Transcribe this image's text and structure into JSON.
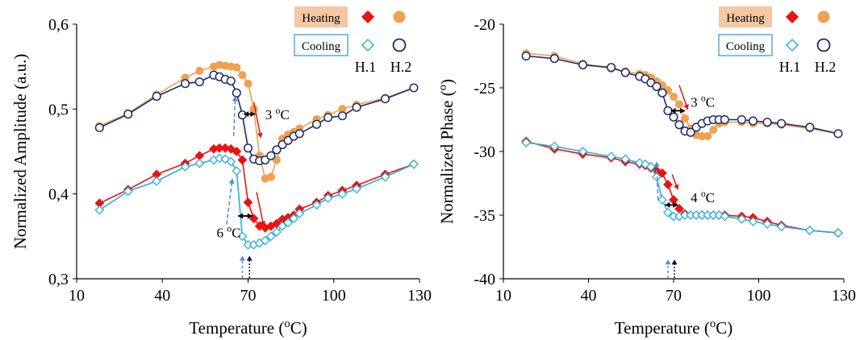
{
  "colors": {
    "heating_h1": "#e8140f",
    "heating_h2": "#f0a050",
    "cooling_h1": "#2aaee0",
    "cooling_h2": "#1c2a6b",
    "heating_legend_bg": "#f5c7a3",
    "cooling_legend_border": "#3a9fd8",
    "arrow_red": "#e8140f",
    "arrow_blue": "#4a90d0",
    "arrow_dark": "#101040"
  },
  "chart_data": [
    {
      "type": "line",
      "xlabel": "Temperature (oC)",
      "ylabel": "Normalized Amplitude (a.u.)",
      "xlim": [
        10,
        130
      ],
      "ylim": [
        0.3,
        0.6
      ],
      "xticks": [
        "10",
        "40",
        "70",
        "100",
        "130"
      ],
      "yticks": [
        "0,3",
        "0,4",
        "0,5",
        "0,6"
      ],
      "legend": {
        "heating_label": "Heating",
        "cooling_label": "Cooling",
        "col1": "H.1",
        "col2": "H.2"
      },
      "annotations": [
        "3 oC",
        "6 oC"
      ],
      "series": [
        {
          "name": "Heating H.1",
          "marker": "diamond-filled",
          "color_key": "heating_h1",
          "x": [
            18,
            28,
            38,
            48,
            53,
            58,
            60,
            62,
            64,
            66,
            68,
            70,
            72,
            74,
            76,
            78,
            80,
            82,
            84,
            86,
            88,
            94,
            98,
            103,
            108,
            118,
            128
          ],
          "y": [
            0.389,
            0.405,
            0.423,
            0.436,
            0.445,
            0.453,
            0.454,
            0.454,
            0.453,
            0.45,
            0.44,
            0.39,
            0.371,
            0.362,
            0.36,
            0.362,
            0.365,
            0.37,
            0.372,
            0.375,
            0.382,
            0.39,
            0.398,
            0.404,
            0.41,
            0.423,
            0.435
          ]
        },
        {
          "name": "Cooling H.1",
          "marker": "diamond-open",
          "color_key": "cooling_h1",
          "x": [
            18,
            28,
            38,
            48,
            53,
            58,
            60,
            62,
            64,
            66,
            68,
            70,
            72,
            74,
            76,
            78,
            80,
            82,
            84,
            86,
            88,
            94,
            98,
            103,
            108,
            118,
            128
          ],
          "y": [
            0.381,
            0.403,
            0.415,
            0.432,
            0.436,
            0.44,
            0.442,
            0.441,
            0.438,
            0.427,
            0.35,
            0.34,
            0.34,
            0.342,
            0.345,
            0.35,
            0.355,
            0.362,
            0.366,
            0.371,
            0.377,
            0.387,
            0.395,
            0.4,
            0.406,
            0.42,
            0.435
          ]
        },
        {
          "name": "Heating H.2",
          "marker": "circle-filled",
          "color_key": "heating_h2",
          "x": [
            18,
            28,
            38,
            48,
            53,
            58,
            60,
            62,
            64,
            66,
            68,
            70,
            72,
            74,
            76,
            78,
            80,
            82,
            84,
            86,
            88,
            94,
            98,
            103,
            108,
            118,
            128
          ],
          "y": [
            0.48,
            0.495,
            0.517,
            0.537,
            0.545,
            0.55,
            0.552,
            0.551,
            0.55,
            0.549,
            0.54,
            0.53,
            0.5,
            0.445,
            0.418,
            0.42,
            0.44,
            0.465,
            0.47,
            0.473,
            0.477,
            0.488,
            0.493,
            0.5,
            0.505,
            0.513,
            0.525
          ]
        },
        {
          "name": "Cooling H.2",
          "marker": "circle-open",
          "color_key": "cooling_h2",
          "x": [
            18,
            28,
            38,
            48,
            53,
            58,
            60,
            62,
            64,
            66,
            68,
            70,
            72,
            74,
            76,
            78,
            80,
            82,
            84,
            86,
            88,
            94,
            98,
            103,
            108,
            118,
            128
          ],
          "y": [
            0.478,
            0.494,
            0.515,
            0.53,
            0.532,
            0.54,
            0.538,
            0.535,
            0.533,
            0.519,
            0.493,
            0.454,
            0.441,
            0.439,
            0.44,
            0.445,
            0.452,
            0.458,
            0.463,
            0.468,
            0.471,
            0.482,
            0.49,
            0.492,
            0.502,
            0.512,
            0.525
          ]
        }
      ]
    },
    {
      "type": "line",
      "xlabel": "Temperature (oC)",
      "ylabel": "Normalized Phase (o)",
      "xlim": [
        10,
        130
      ],
      "ylim": [
        -40,
        -20
      ],
      "xticks": [
        "10",
        "40",
        "70",
        "100",
        "130"
      ],
      "yticks": [
        "-40",
        "-35",
        "-30",
        "-25",
        "-20"
      ],
      "legend": {
        "heating_label": "Heating",
        "cooling_label": "Cooling",
        "col1": "H.1",
        "col2": "H.2"
      },
      "annotations": [
        "3 oC",
        "4 oC"
      ],
      "series": [
        {
          "name": "Heating H.1",
          "marker": "diamond-filled",
          "color_key": "heating_h1",
          "x": [
            18,
            28,
            38,
            48,
            53,
            58,
            60,
            62,
            64,
            66,
            68,
            70,
            72,
            74,
            76,
            78,
            80,
            82,
            84,
            86,
            88,
            94,
            98,
            103,
            108,
            118,
            128
          ],
          "y": [
            -29.2,
            -29.8,
            -30.2,
            -30.5,
            -30.8,
            -31.0,
            -31.1,
            -31.3,
            -31.5,
            -31.7,
            -32.6,
            -33.8,
            -34.5,
            -34.9,
            -35.0,
            -35.0,
            -35.0,
            -35.0,
            -35.0,
            -35.0,
            -35.0,
            -35.1,
            -35.2,
            -35.5,
            -35.8,
            -36.2,
            -36.4
          ]
        },
        {
          "name": "Cooling H.1",
          "marker": "diamond-open",
          "color_key": "cooling_h1",
          "x": [
            18,
            28,
            38,
            48,
            53,
            58,
            60,
            62,
            64,
            66,
            68,
            70,
            72,
            74,
            76,
            78,
            80,
            82,
            84,
            86,
            88,
            94,
            98,
            103,
            108,
            118,
            128
          ],
          "y": [
            -29.3,
            -29.6,
            -30.0,
            -30.4,
            -30.6,
            -30.9,
            -31.0,
            -31.2,
            -32.0,
            -33.8,
            -34.8,
            -35.1,
            -35.1,
            -35.0,
            -35.0,
            -35.0,
            -35.0,
            -35.0,
            -35.0,
            -35.0,
            -35.1,
            -35.3,
            -35.5,
            -35.7,
            -35.9,
            -36.2,
            -36.4
          ]
        },
        {
          "name": "Heating H.2",
          "marker": "circle-filled",
          "color_key": "heating_h2",
          "x": [
            18,
            28,
            38,
            48,
            53,
            58,
            60,
            62,
            64,
            66,
            68,
            70,
            72,
            74,
            76,
            78,
            80,
            82,
            84,
            86,
            88,
            94,
            98,
            103,
            108,
            118,
            128
          ],
          "y": [
            -22.3,
            -22.5,
            -23.1,
            -23.5,
            -23.7,
            -23.9,
            -24.0,
            -24.2,
            -24.5,
            -24.8,
            -25.2,
            -25.7,
            -26.3,
            -27.4,
            -28.2,
            -28.7,
            -28.8,
            -28.8,
            -28.3,
            -27.8,
            -27.7,
            -27.7,
            -27.8,
            -27.8,
            -27.9,
            -28.2,
            -28.6
          ]
        },
        {
          "name": "Cooling H.2",
          "marker": "circle-open",
          "color_key": "cooling_h2",
          "x": [
            18,
            28,
            38,
            48,
            53,
            58,
            60,
            62,
            64,
            66,
            68,
            70,
            72,
            74,
            76,
            78,
            80,
            82,
            84,
            86,
            88,
            94,
            98,
            103,
            108,
            118,
            128
          ],
          "y": [
            -22.5,
            -22.7,
            -23.2,
            -23.4,
            -23.8,
            -24.1,
            -24.3,
            -24.6,
            -24.9,
            -25.4,
            -26.8,
            -27.3,
            -27.9,
            -28.4,
            -28.5,
            -28.1,
            -27.8,
            -27.6,
            -27.5,
            -27.5,
            -27.5,
            -27.5,
            -27.6,
            -27.7,
            -27.8,
            -28.1,
            -28.6
          ]
        }
      ]
    }
  ]
}
